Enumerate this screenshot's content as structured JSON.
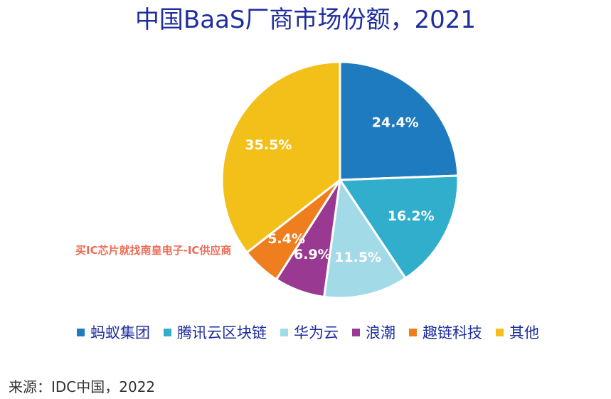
{
  "chart_data": {
    "type": "pie",
    "title": "中国BaaS厂商市场份额，2021",
    "categories": [
      "蚂蚁集团",
      "腾讯云区块链",
      "华为云",
      "浪潮",
      "趣链科技",
      "其他"
    ],
    "values": [
      24.4,
      16.2,
      11.5,
      6.9,
      5.4,
      35.5
    ],
    "data_labels": [
      "24.4%",
      "16.2%",
      "11.5%",
      "6.9%",
      "5.4%",
      "35.5%"
    ],
    "colors": [
      "#1f7bbf",
      "#31aecb",
      "#a2dbe7",
      "#993991",
      "#ef7e1e",
      "#f2c019"
    ],
    "legend_position": "bottom",
    "grid": false
  },
  "source": "来源：IDC中国，2022",
  "watermark": "买IC芯片就找南皇电子-IC供应商"
}
